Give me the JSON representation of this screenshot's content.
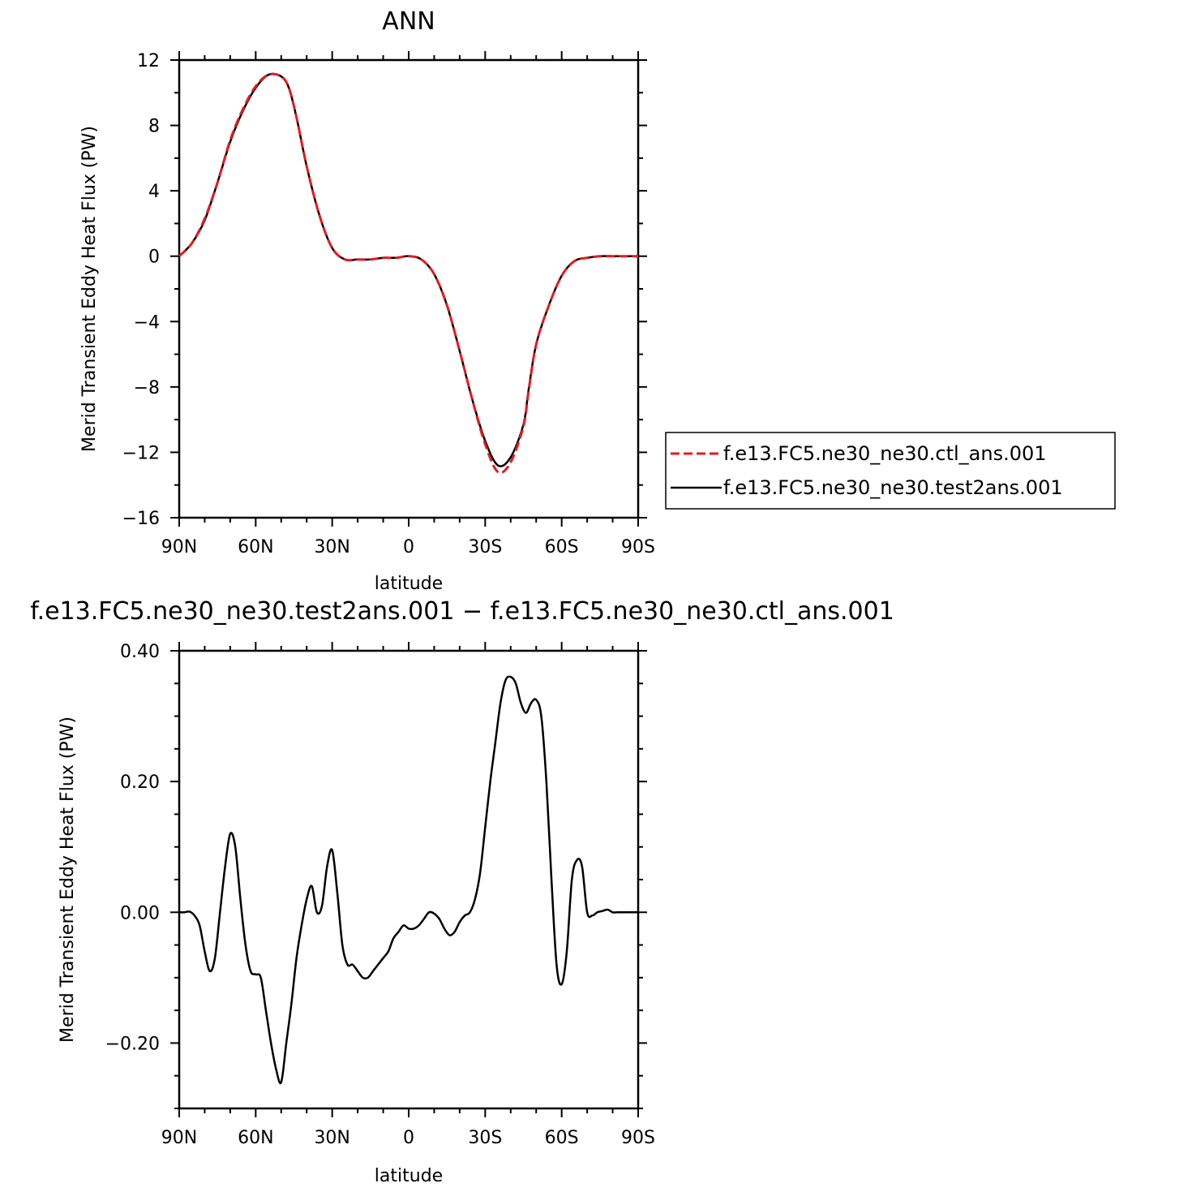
{
  "chart_data": [
    {
      "type": "line",
      "title": "ANN",
      "xlabel": "latitude",
      "ylabel": "Merid Transient Eddy Heat Flux (PW)",
      "xlim": [
        -90,
        90
      ],
      "ylim": [
        -16,
        12
      ],
      "xticks": [
        -90,
        -60,
        -30,
        0,
        30,
        60,
        90
      ],
      "xtick_labels": [
        "90N",
        "60N",
        "30N",
        "0",
        "30S",
        "60S",
        "90S"
      ],
      "yticks": [
        12,
        8,
        4,
        0,
        -4,
        -8,
        -12,
        -16
      ],
      "ytick_labels": [
        "12",
        "8",
        "4",
        "0",
        "−4",
        "−8",
        "−12",
        "−16"
      ],
      "grid": false,
      "legend_placement": "right",
      "series": [
        {
          "name": "f.e13.FC5.ne30_ne30.ctl_ans.001",
          "color": "#e8191f",
          "style": "dashed",
          "x": [
            -90,
            -85,
            -80,
            -75,
            -70,
            -65,
            -60,
            -55,
            -50,
            -47,
            -44,
            -40,
            -35,
            -30,
            -25,
            -20,
            -15,
            -10,
            -5,
            0,
            5,
            10,
            15,
            20,
            25,
            30,
            35,
            40,
            45,
            47,
            50,
            55,
            60,
            65,
            70,
            75,
            80,
            85,
            90
          ],
          "y": [
            0,
            0.8,
            2.3,
            4.5,
            7.1,
            9.0,
            10.4,
            11.1,
            11.0,
            10.3,
            8.5,
            5.5,
            2.5,
            0.5,
            -0.2,
            -0.2,
            -0.2,
            -0.1,
            -0.1,
            0.0,
            -0.2,
            -1.1,
            -3.0,
            -5.8,
            -8.8,
            -11.5,
            -13.2,
            -12.6,
            -10.4,
            -8.3,
            -5.4,
            -3.0,
            -1.2,
            -0.3,
            -0.1,
            0.0,
            0.0,
            0.0,
            0.0
          ]
        },
        {
          "name": "f.e13.FC5.ne30_ne30.test2ans.001",
          "color": "#000000",
          "style": "solid",
          "x": [
            -90,
            -85,
            -80,
            -75,
            -70,
            -65,
            -60,
            -55,
            -50,
            -47,
            -44,
            -40,
            -35,
            -30,
            -25,
            -20,
            -15,
            -10,
            -5,
            0,
            5,
            10,
            15,
            20,
            25,
            30,
            35,
            40,
            45,
            47,
            50,
            55,
            60,
            65,
            70,
            75,
            80,
            85,
            90
          ],
          "y": [
            0,
            0.8,
            2.2,
            4.5,
            7.0,
            8.9,
            10.3,
            11.1,
            11.0,
            10.3,
            8.5,
            5.5,
            2.5,
            0.5,
            -0.2,
            -0.2,
            -0.2,
            -0.1,
            -0.1,
            0.0,
            -0.2,
            -1.1,
            -3.0,
            -5.8,
            -8.8,
            -11.3,
            -12.8,
            -12.3,
            -10.3,
            -8.2,
            -5.4,
            -3.0,
            -1.2,
            -0.3,
            -0.1,
            0.0,
            0.0,
            0.0,
            0.0
          ]
        }
      ]
    },
    {
      "type": "line",
      "title": "f.e13.FC5.ne30_ne30.test2ans.001 − f.e13.FC5.ne30_ne30.ctl_ans.001",
      "xlabel": "latitude",
      "ylabel": "Merid Transient Eddy Heat Flux (PW)",
      "xlim": [
        -90,
        90
      ],
      "ylim": [
        -0.3,
        0.4
      ],
      "xticks": [
        -90,
        -60,
        -30,
        0,
        30,
        60,
        90
      ],
      "xtick_labels": [
        "90N",
        "60N",
        "30N",
        "0",
        "30S",
        "60S",
        "90S"
      ],
      "yticks": [
        0.4,
        0.2,
        0.0,
        -0.2
      ],
      "ytick_labels": [
        "0.40",
        "0.20",
        "0.00",
        "−0.20"
      ],
      "grid": false,
      "series": [
        {
          "color": "#000000",
          "style": "solid",
          "x": [
            -90,
            -88,
            -86,
            -84,
            -82,
            -80,
            -78,
            -76,
            -74,
            -72,
            -70,
            -68,
            -66,
            -64,
            -62,
            -60,
            -58,
            -56,
            -54,
            -52,
            -50,
            -48,
            -46,
            -44,
            -42,
            -40,
            -38,
            -36,
            -34,
            -32,
            -30,
            -28,
            -26,
            -24,
            -22,
            -20,
            -18,
            -16,
            -14,
            -12,
            -10,
            -8,
            -6,
            -4,
            -2,
            0,
            2,
            4,
            6,
            8,
            10,
            12,
            14,
            16,
            18,
            20,
            22,
            24,
            26,
            28,
            30,
            32,
            34,
            36,
            38,
            40,
            42,
            44,
            46,
            48,
            50,
            52,
            54,
            56,
            58,
            60,
            62,
            64,
            66,
            68,
            70,
            72,
            74,
            76,
            78,
            80,
            82,
            84,
            86,
            88,
            90
          ],
          "y": [
            0,
            0,
            0.001,
            -0.005,
            -0.02,
            -0.06,
            -0.09,
            -0.07,
            0.0,
            0.07,
            0.12,
            0.1,
            0.02,
            -0.05,
            -0.09,
            -0.095,
            -0.1,
            -0.15,
            -0.2,
            -0.24,
            -0.26,
            -0.2,
            -0.14,
            -0.07,
            -0.02,
            0.02,
            0.04,
            0.0,
            0.01,
            0.07,
            0.095,
            0.03,
            -0.05,
            -0.08,
            -0.08,
            -0.09,
            -0.1,
            -0.1,
            -0.09,
            -0.08,
            -0.07,
            -0.06,
            -0.04,
            -0.03,
            -0.02,
            -0.025,
            -0.025,
            -0.02,
            -0.01,
            0.0,
            -0.002,
            -0.01,
            -0.025,
            -0.035,
            -0.03,
            -0.015,
            -0.005,
            0.0,
            0.02,
            0.06,
            0.13,
            0.2,
            0.26,
            0.32,
            0.355,
            0.36,
            0.35,
            0.32,
            0.305,
            0.32,
            0.325,
            0.3,
            0.2,
            0.05,
            -0.08,
            -0.11,
            -0.06,
            0.05,
            0.08,
            0.07,
            0.0,
            -0.005,
            0.0,
            0.002,
            0.004,
            0.0,
            0.0,
            0.0,
            0.0,
            0.0,
            0.0
          ]
        }
      ]
    }
  ]
}
